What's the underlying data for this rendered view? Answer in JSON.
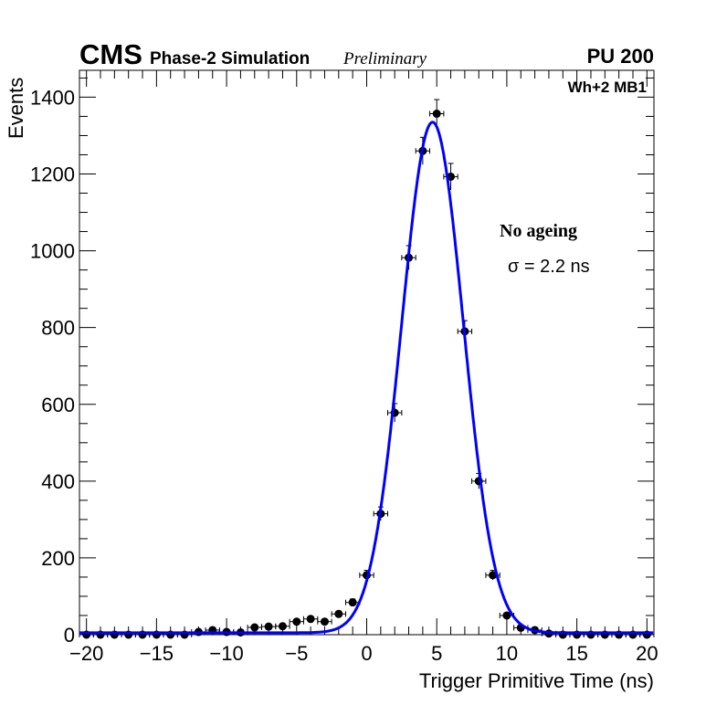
{
  "header": {
    "cms": "CMS",
    "subtitle": "Phase-2 Simulation",
    "preliminary": "Preliminary",
    "pileup": "PU 200",
    "station": "Wh+2 MB1"
  },
  "annotations": {
    "condition": "No ageing",
    "resolution": "σ = 2.2 ns"
  },
  "chart_data": {
    "type": "scatter",
    "title": "",
    "xlabel": "Trigger Primitive Time (ns)",
    "ylabel": "Events",
    "xlim": [
      -20.5,
      20.5
    ],
    "ylim": [
      0,
      1470
    ],
    "xticks": [
      -20,
      -15,
      -10,
      -5,
      0,
      5,
      10,
      15,
      20
    ],
    "xtick_labels": [
      "−20",
      "−15",
      "−10",
      "−5",
      "0",
      "5",
      "10",
      "15",
      "20"
    ],
    "yticks": [
      0,
      200,
      400,
      600,
      800,
      1000,
      1200,
      1400
    ],
    "ytick_labels": [
      "0",
      "200",
      "400",
      "600",
      "800",
      "1000",
      "1200",
      "1400"
    ],
    "grid": false,
    "series": [
      {
        "name": "Simulation",
        "style": "points-with-errors",
        "color": "#000000",
        "x": [
          -20,
          -19,
          -18,
          -17,
          -16,
          -15,
          -14,
          -13,
          -12,
          -11,
          -10,
          -9,
          -8,
          -7,
          -6,
          -5,
          -4,
          -3,
          -2,
          -1,
          0,
          1,
          2,
          3,
          4,
          5,
          6,
          7,
          8,
          9,
          10,
          11,
          12,
          13,
          14,
          15,
          16,
          17,
          18,
          19,
          20
        ],
        "y": [
          0,
          0,
          0,
          0,
          0,
          0,
          0,
          0,
          7,
          12,
          7,
          6,
          19,
          21,
          22,
          34,
          41,
          34,
          54,
          84,
          155,
          315,
          578,
          982,
          1260,
          1357,
          1193,
          790,
          400,
          155,
          50,
          18,
          12,
          3,
          0,
          0,
          0,
          0,
          0,
          0,
          0
        ]
      },
      {
        "name": "Gaussian fit",
        "style": "line",
        "color": "#0000ff",
        "function": "gaussian+constant",
        "amplitude": 1330,
        "mean": 4.7,
        "sigma": 2.2,
        "constant": 5
      }
    ]
  }
}
